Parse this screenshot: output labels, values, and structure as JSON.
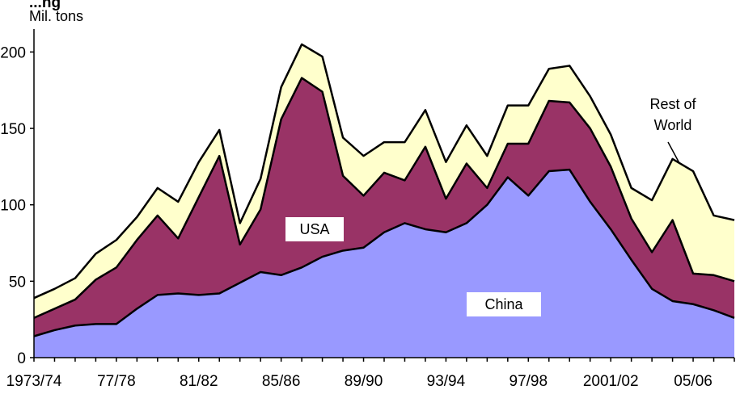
{
  "chart_data": {
    "type": "area",
    "stacked": true,
    "title": "...ng",
    "ylabel": "Mil. tons",
    "ylim": [
      0,
      215
    ],
    "yticks": [
      0,
      50,
      100,
      150,
      200
    ],
    "x_tick_labels": [
      "1973/74",
      "77/78",
      "81/82",
      "85/86",
      "89/90",
      "93/94",
      "97/98",
      "2001/02",
      "05/06"
    ],
    "x": [
      "1973/74",
      "1974/75",
      "1975/76",
      "1976/77",
      "1977/78",
      "1978/79",
      "1979/80",
      "1980/81",
      "1981/82",
      "1982/83",
      "1983/84",
      "1984/85",
      "1985/86",
      "1986/87",
      "1987/88",
      "1988/89",
      "1989/90",
      "1990/91",
      "1991/92",
      "1992/93",
      "1993/94",
      "1994/95",
      "1995/96",
      "1996/97",
      "1997/98",
      "1998/99",
      "1999/00",
      "2000/01",
      "2001/02",
      "2002/03",
      "2003/04",
      "2004/05",
      "2005/06",
      "2006/07",
      "2007/08"
    ],
    "series": [
      {
        "name": "China",
        "color": "#9999ff",
        "values": [
          14,
          18,
          21,
          22,
          22,
          32,
          41,
          42,
          41,
          42,
          49,
          56,
          54,
          59,
          66,
          70,
          72,
          82,
          88,
          84,
          82,
          88,
          100,
          118,
          106,
          122,
          123,
          102,
          84,
          64,
          45,
          37,
          35,
          31,
          26
        ]
      },
      {
        "name": "USA",
        "color": "#993366",
        "values": [
          12,
          14,
          17,
          29,
          37,
          45,
          52,
          36,
          64,
          90,
          25,
          41,
          102,
          124,
          108,
          49,
          34,
          39,
          28,
          54,
          22,
          39,
          11,
          22,
          34,
          46,
          44,
          48,
          41,
          27,
          24,
          53,
          20,
          23,
          24
        ]
      },
      {
        "name": "Rest of World",
        "color": "#ffffcc",
        "values": [
          13,
          13,
          14,
          17,
          18,
          15,
          18,
          24,
          23,
          17,
          14,
          20,
          21,
          22,
          23,
          25,
          26,
          20,
          25,
          24,
          24,
          25,
          21,
          25,
          25,
          21,
          24,
          21,
          21,
          20,
          34,
          40,
          67,
          39,
          40
        ]
      }
    ],
    "annotations": [
      "USA",
      "China",
      "Rest of",
      "World"
    ]
  }
}
